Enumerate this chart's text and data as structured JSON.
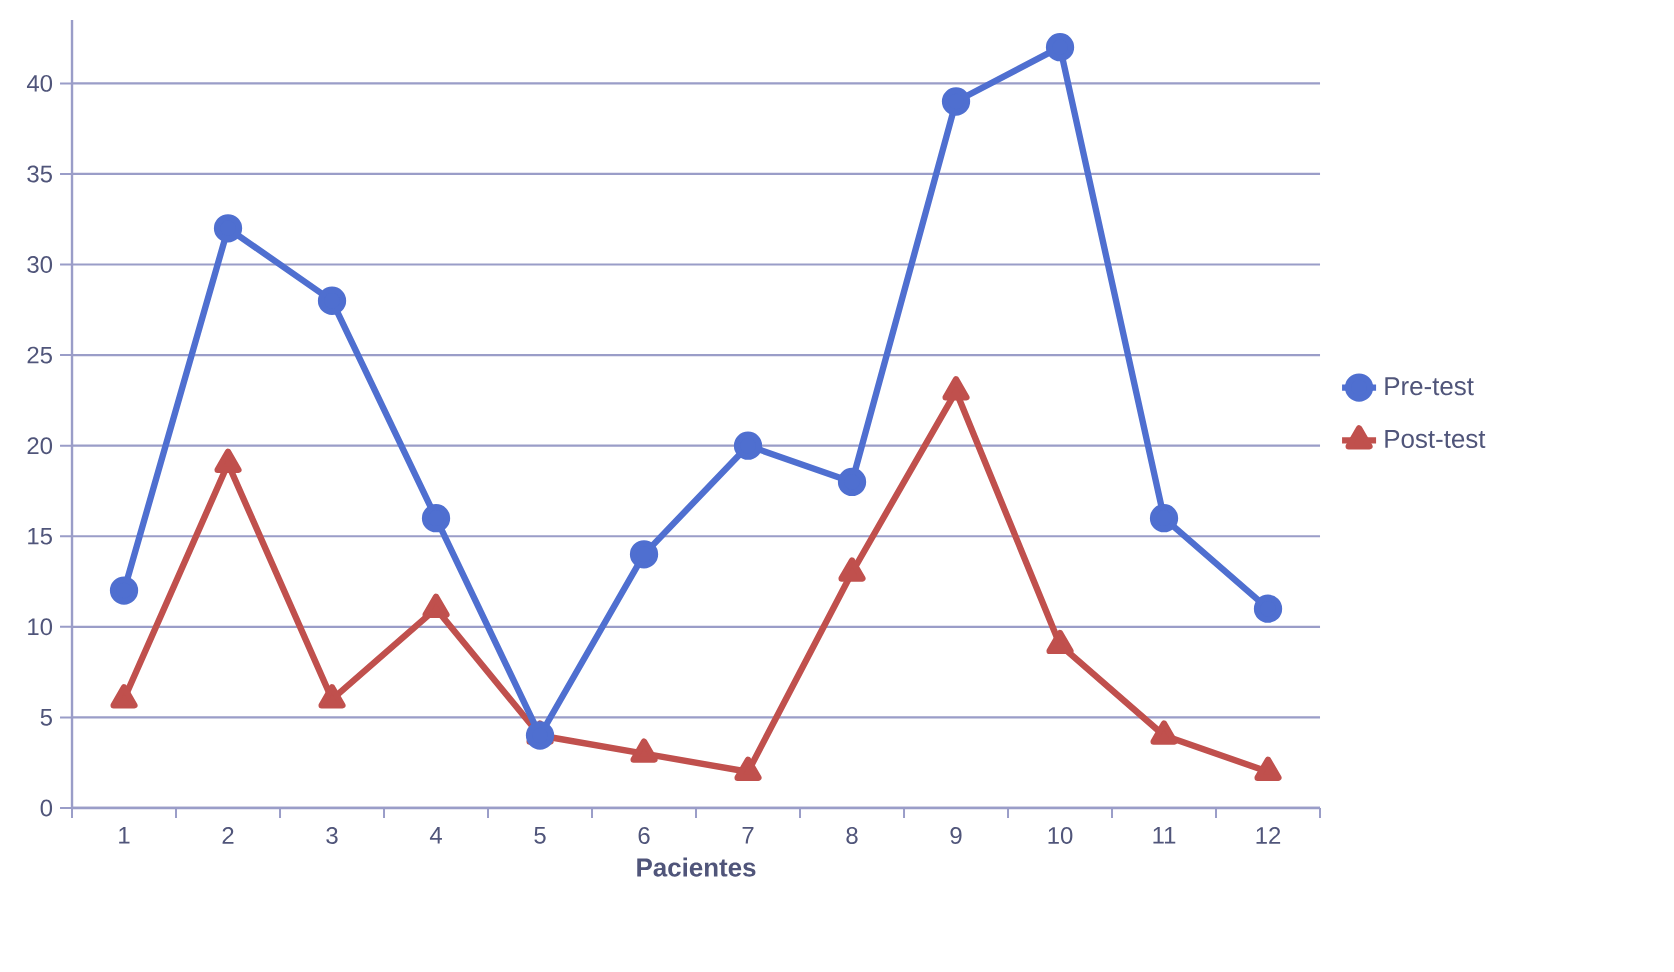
{
  "chart_data": {
    "type": "line",
    "xlabel": "Pacientes",
    "categories": [
      "1",
      "2",
      "3",
      "4",
      "5",
      "6",
      "7",
      "8",
      "9",
      "10",
      "11",
      "12"
    ],
    "series": [
      {
        "name": "Pre-test",
        "color": "#4f6fd0",
        "marker": "circle",
        "values": [
          12,
          32,
          28,
          16,
          4,
          14,
          20,
          18,
          39,
          42,
          16,
          11
        ]
      },
      {
        "name": "Post-test",
        "color": "#c0504d",
        "marker": "triangle",
        "values": [
          6,
          19,
          6,
          11,
          4,
          3,
          2,
          13,
          23,
          9,
          4,
          2
        ]
      }
    ],
    "ylim": [
      0,
      43.5
    ],
    "yticks": [
      0,
      5,
      10,
      15,
      20,
      25,
      30,
      35,
      40
    ],
    "grid": "y",
    "legend": "right",
    "line_style": "solid"
  }
}
